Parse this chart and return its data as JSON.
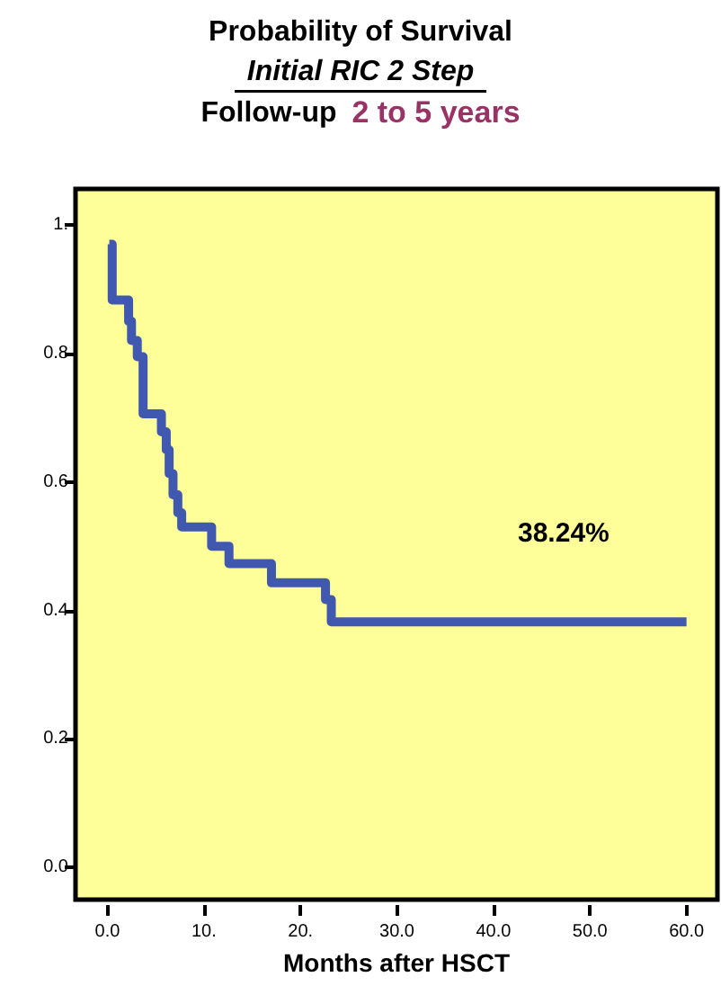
{
  "chart_data": {
    "type": "step",
    "title": "Probability of Survival",
    "subtitle": "Initial RIC 2 Step",
    "xlabel": "Months after HSCT",
    "annotations": [
      "Follow-up",
      "2 to 5 years",
      "38.24%"
    ],
    "x": [
      0.2,
      0.5,
      2.2,
      2.5,
      3.1,
      3.7,
      5.6,
      6.1,
      6.4,
      6.8,
      7.3,
      7.7,
      10.8,
      12.6,
      17.0,
      22.6,
      23.2,
      60
    ],
    "series": [
      {
        "color": "#4158b0",
        "values": [
          0.97,
          0.883,
          0.85,
          0.82,
          0.795,
          0.706,
          0.678,
          0.65,
          0.613,
          0.58,
          0.552,
          0.53,
          0.5,
          0.473,
          0.443,
          0.417,
          0.3824,
          0.3824
        ]
      }
    ],
    "xlim": [
      -3.3,
      63.2
    ],
    "ylim": [
      -0.05,
      1.056
    ],
    "xticks": [
      {
        "value": 0,
        "label": "0.0"
      },
      {
        "value": 10,
        "label": "10."
      },
      {
        "value": 20,
        "label": "20."
      },
      {
        "value": 30,
        "label": "30.0"
      },
      {
        "value": 40,
        "label": "40.0"
      },
      {
        "value": 50,
        "label": "50.0"
      },
      {
        "value": 60,
        "label": "60.0"
      }
    ],
    "yticks": [
      {
        "value": 0,
        "label": "0.0"
      },
      {
        "value": 0.2,
        "label": "0.2"
      },
      {
        "value": 0.4,
        "label": "0.4"
      },
      {
        "value": 0.6,
        "label": "0.6"
      },
      {
        "value": 0.8,
        "label": "0.8"
      },
      {
        "value": 1,
        "label": "1."
      }
    ],
    "marker": "none",
    "line_style": "solid"
  }
}
